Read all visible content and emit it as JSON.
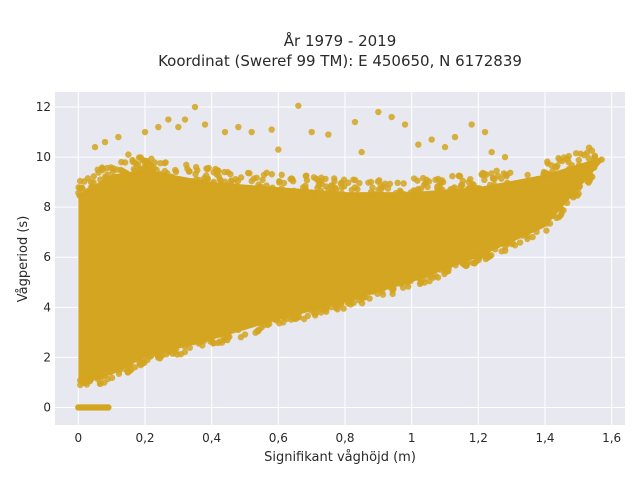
{
  "chart_data": {
    "type": "scatter",
    "title_line1": "År 1979 - 2019",
    "title_line2": "Koordinat (Sweref 99 TM): E 450650, N 6172839",
    "xlabel": "Signifikant våghöjd (m)",
    "ylabel": "Vågperiod (s)",
    "xlim": [
      -0.07,
      1.64
    ],
    "ylim": [
      -0.7,
      12.6
    ],
    "x_ticks": [
      0,
      0.2,
      0.4,
      0.6,
      0.8,
      1.0,
      1.2,
      1.4,
      1.6
    ],
    "x_tick_labels": [
      "0",
      "0,2",
      "0,4",
      "0,6",
      "0,8",
      "1",
      "1,2",
      "1,4",
      "1,6"
    ],
    "y_ticks": [
      0,
      2,
      4,
      6,
      8,
      10,
      12
    ],
    "y_tick_labels": [
      "0",
      "2",
      "4",
      "6",
      "8",
      "10",
      "12"
    ],
    "grid": true,
    "colors": {
      "marker": "#D4A520",
      "plot_bg": "#E8E8F0",
      "grid": "#FFFFFF",
      "text": "#2A2A2A"
    },
    "point_density_envelope": {
      "description_points": [
        {
          "x": 0.0,
          "lower": 1.0,
          "upper": 8.5
        },
        {
          "x": 0.1,
          "lower": 1.3,
          "upper": 9.3
        },
        {
          "x": 0.2,
          "lower": 2.0,
          "upper": 9.5
        },
        {
          "x": 0.4,
          "lower": 2.7,
          "upper": 9.0
        },
        {
          "x": 0.6,
          "lower": 3.5,
          "upper": 8.8
        },
        {
          "x": 0.8,
          "lower": 4.2,
          "upper": 8.6
        },
        {
          "x": 1.0,
          "lower": 5.0,
          "upper": 8.6
        },
        {
          "x": 1.2,
          "lower": 6.0,
          "upper": 8.8
        },
        {
          "x": 1.4,
          "lower": 7.2,
          "upper": 9.3
        },
        {
          "x": 1.57,
          "lower": 9.8,
          "upper": 10.0
        }
      ],
      "zero_period_band": {
        "x_from": 0.0,
        "x_to": 0.09,
        "y": 0
      }
    },
    "outliers": [
      {
        "x": 0.2,
        "y": 11.0
      },
      {
        "x": 0.24,
        "y": 11.2
      },
      {
        "x": 0.27,
        "y": 11.5
      },
      {
        "x": 0.3,
        "y": 11.2
      },
      {
        "x": 0.32,
        "y": 11.5
      },
      {
        "x": 0.35,
        "y": 12.0
      },
      {
        "x": 0.38,
        "y": 11.3
      },
      {
        "x": 0.44,
        "y": 11.0
      },
      {
        "x": 0.48,
        "y": 11.2
      },
      {
        "x": 0.52,
        "y": 11.0
      },
      {
        "x": 0.58,
        "y": 11.1
      },
      {
        "x": 0.66,
        "y": 12.05
      },
      {
        "x": 0.7,
        "y": 11.0
      },
      {
        "x": 0.75,
        "y": 10.9
      },
      {
        "x": 0.83,
        "y": 11.4
      },
      {
        "x": 0.9,
        "y": 11.8
      },
      {
        "x": 0.94,
        "y": 11.6
      },
      {
        "x": 0.98,
        "y": 11.3
      },
      {
        "x": 1.02,
        "y": 10.5
      },
      {
        "x": 1.06,
        "y": 10.7
      },
      {
        "x": 1.1,
        "y": 10.4
      },
      {
        "x": 1.13,
        "y": 10.8
      },
      {
        "x": 1.18,
        "y": 11.3
      },
      {
        "x": 1.22,
        "y": 11.0
      },
      {
        "x": 1.24,
        "y": 10.2
      },
      {
        "x": 1.28,
        "y": 10.0
      },
      {
        "x": 1.55,
        "y": 10.0
      },
      {
        "x": 1.57,
        "y": 9.9
      },
      {
        "x": 0.6,
        "y": 10.3
      },
      {
        "x": 0.85,
        "y": 10.2
      },
      {
        "x": 0.05,
        "y": 10.4
      },
      {
        "x": 0.08,
        "y": 10.6
      },
      {
        "x": 0.12,
        "y": 10.8
      },
      {
        "x": 0.15,
        "y": 10.1
      }
    ]
  }
}
